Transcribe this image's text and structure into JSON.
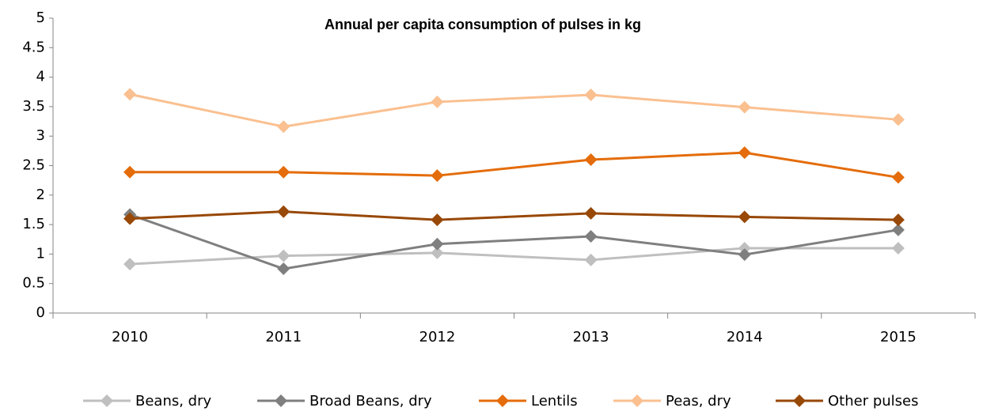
{
  "chart_data": {
    "type": "line",
    "title": "Annual per capita consumption of pulses in kg",
    "categories": [
      "2010",
      "2011",
      "2012",
      "2013",
      "2014",
      "2015"
    ],
    "ylim": [
      0,
      5
    ],
    "yticks": [
      0,
      0.5,
      1,
      1.5,
      2,
      2.5,
      3,
      3.5,
      4,
      4.5,
      5
    ],
    "grid": false,
    "legend": "bottom",
    "marker": "diamond",
    "series": [
      {
        "name": "Beans, dry",
        "color": "#bfbfbf",
        "values": [
          0.83,
          0.97,
          1.02,
          0.9,
          1.1,
          1.1
        ]
      },
      {
        "name": "Broad Beans, dry",
        "color": "#7f7f7f",
        "values": [
          1.67,
          0.75,
          1.17,
          1.3,
          0.99,
          1.41
        ]
      },
      {
        "name": "Lentils",
        "color": "#e46c0a",
        "values": [
          2.39,
          2.39,
          2.33,
          2.6,
          2.72,
          2.3
        ]
      },
      {
        "name": "Peas, dry",
        "color": "#fac090",
        "values": [
          3.71,
          3.16,
          3.58,
          3.7,
          3.49,
          3.28
        ]
      },
      {
        "name": "Other pulses",
        "color": "#984807",
        "values": [
          1.6,
          1.72,
          1.58,
          1.69,
          1.63,
          1.58
        ]
      }
    ]
  }
}
